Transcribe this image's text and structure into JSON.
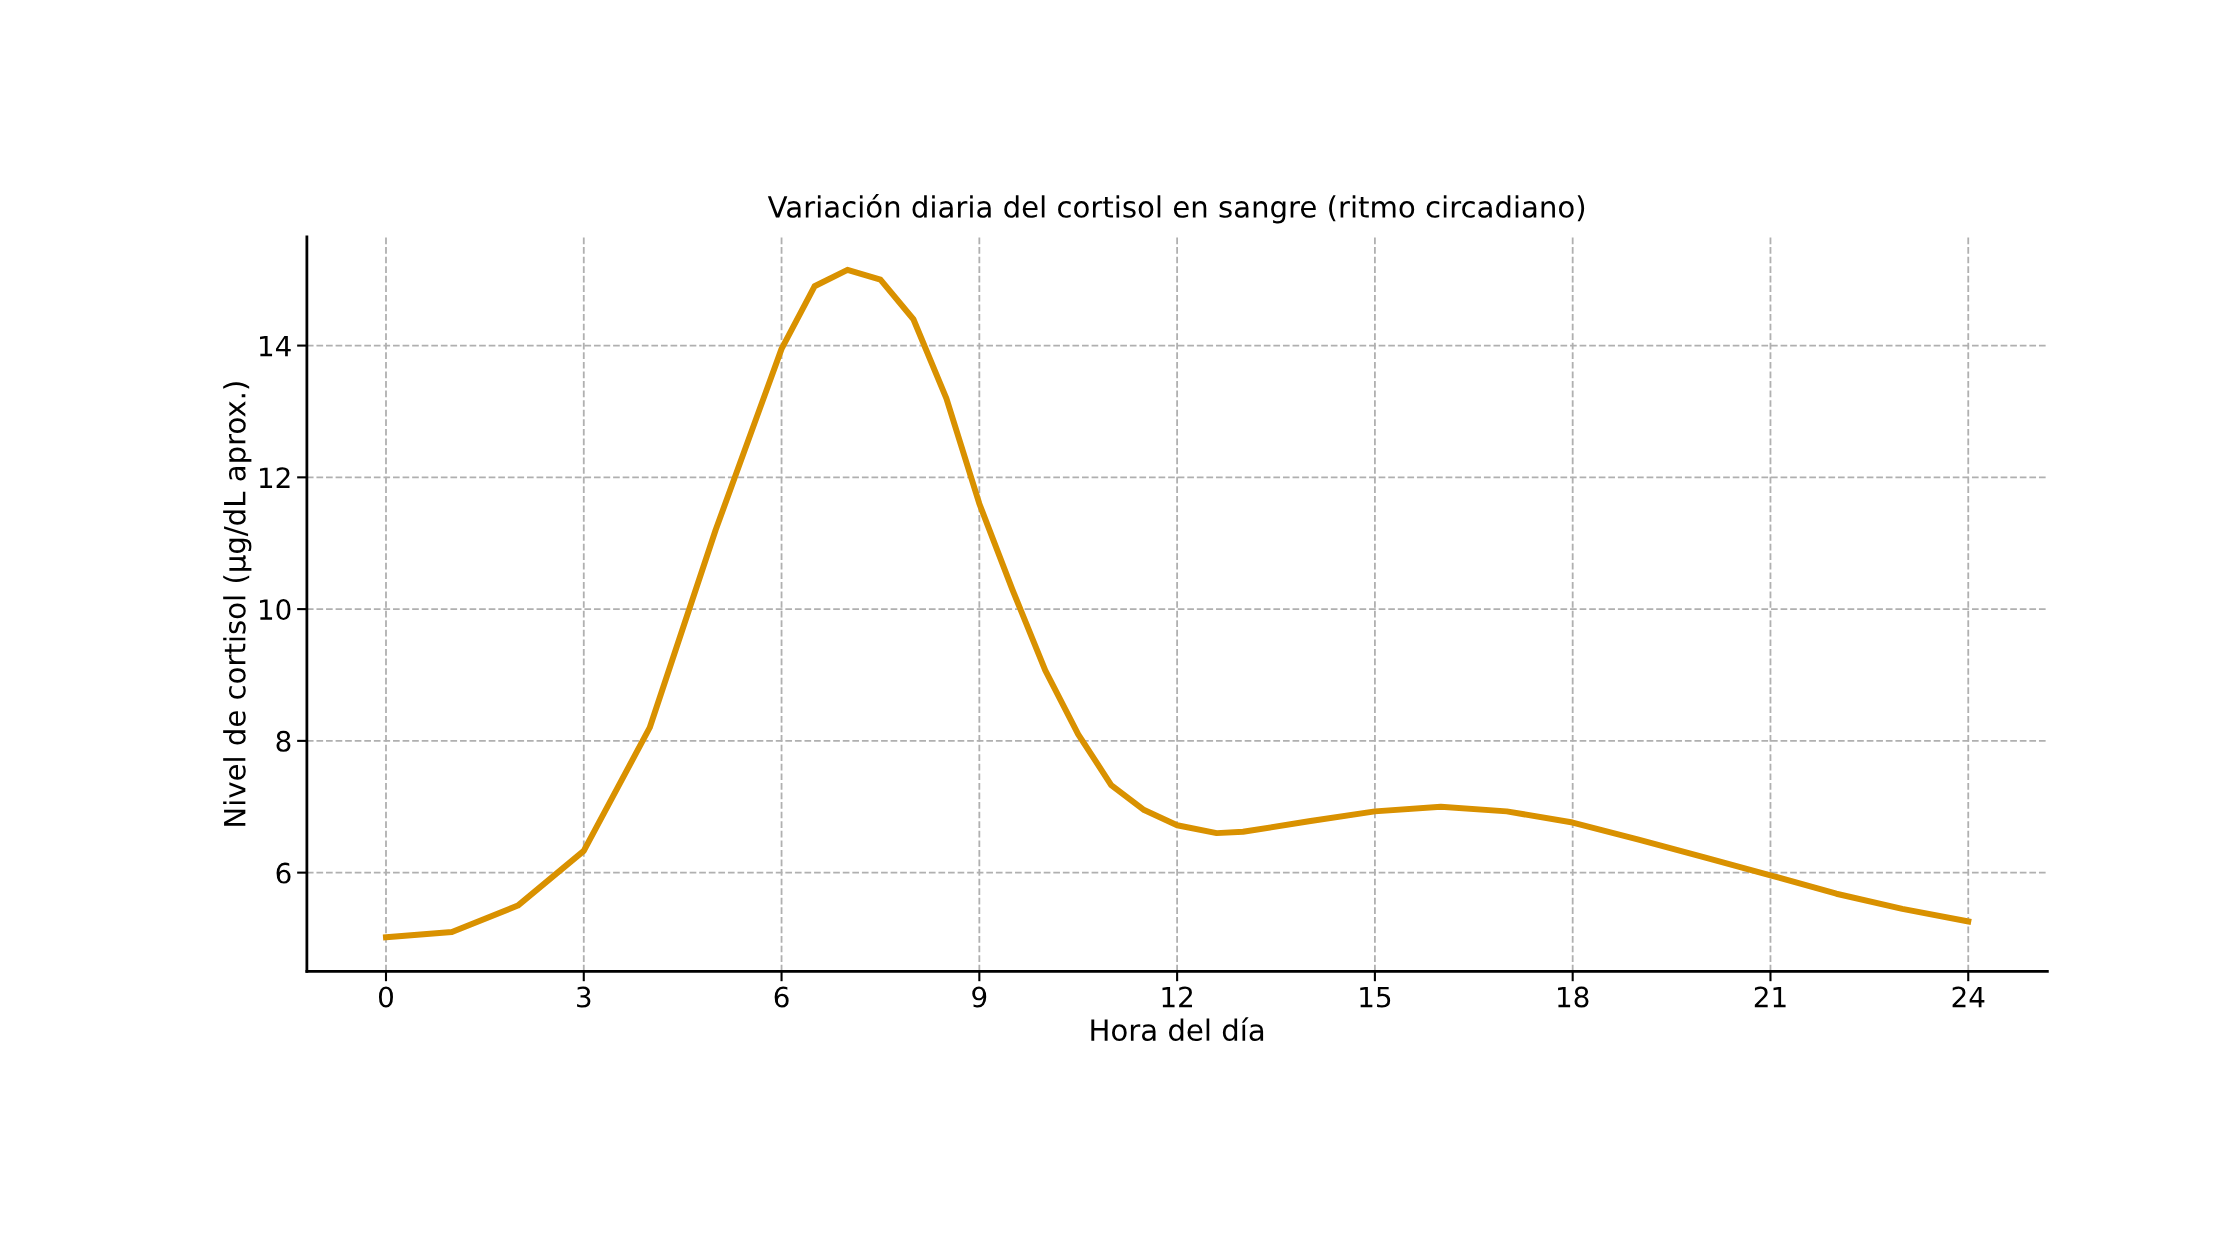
{
  "chart_data": {
    "type": "line",
    "title": "Variación diaria del cortisol en sangre (ritmo circadiano)",
    "xlabel": "Hora del día",
    "ylabel": "Nivel de cortisol (µg/dL aprox.)",
    "x": [
      0,
      1,
      2,
      3,
      4,
      5,
      6,
      6.5,
      7,
      7.5,
      8,
      8.5,
      9,
      9.5,
      10,
      10.5,
      11,
      11.5,
      12,
      12.6,
      13,
      14,
      15,
      16,
      17,
      18,
      19,
      20,
      21,
      22,
      23,
      24
    ],
    "series": [
      {
        "color": "#d99100",
        "values": [
          5.02,
          5.1,
          5.5,
          6.33,
          8.2,
          11.2,
          13.95,
          14.9,
          15.15,
          15.0,
          14.4,
          13.2,
          11.6,
          10.3,
          9.07,
          8.1,
          7.33,
          6.95,
          6.72,
          6.6,
          6.62,
          6.78,
          6.93,
          7.0,
          6.93,
          6.76,
          6.5,
          6.23,
          5.96,
          5.68,
          5.45,
          5.26
        ]
      }
    ],
    "xlim": [
      -1.2,
      25.2
    ],
    "xticks": [
      0,
      3,
      6,
      9,
      12,
      15,
      18,
      21,
      24
    ],
    "ylim": [
      4.5,
      15.65
    ],
    "yticks": [
      6,
      8,
      10,
      12,
      14
    ],
    "grid": true,
    "legend": false,
    "marker": "none",
    "line_style": "solid"
  }
}
